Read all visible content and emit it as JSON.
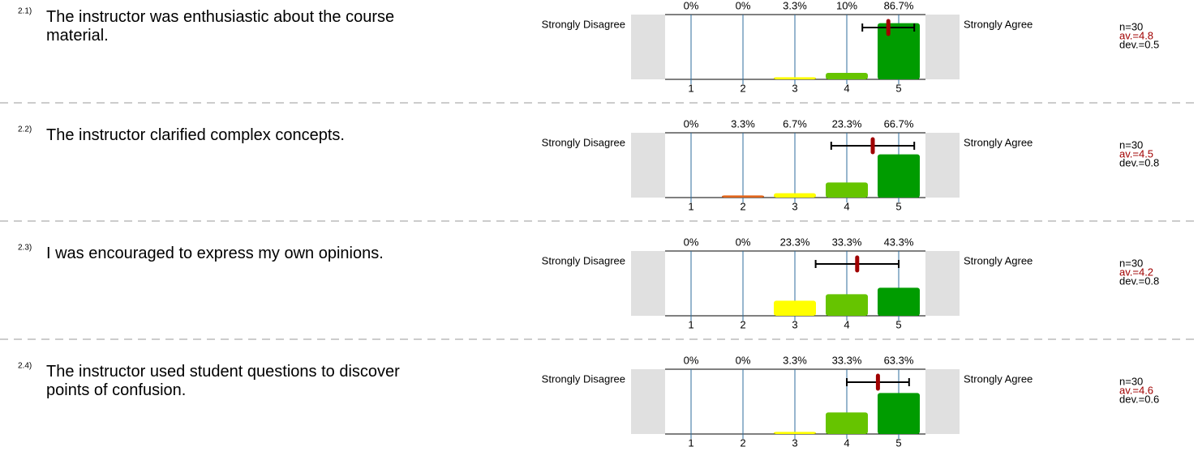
{
  "chart_data": [
    {
      "type": "bar",
      "label": "2.1)",
      "title": "The instructor was enthusiastic about the course material.",
      "left_label": "Strongly Disagree",
      "right_label": "Strongly Agree",
      "categories": [
        "1",
        "2",
        "3",
        "4",
        "5"
      ],
      "values": [
        0,
        0,
        3.3,
        10,
        86.7
      ],
      "value_labels": [
        "0%",
        "0%",
        "3.3%",
        "10%",
        "86.7%"
      ],
      "colors": [
        "#d40000",
        "#e0651c",
        "#ffff00",
        "#66c400",
        "#009c00"
      ],
      "ylim": [
        0,
        100
      ],
      "mean": 4.8,
      "sd": 0.5,
      "n_label": "n=30",
      "mean_label": "av.=4.8",
      "sd_label": "dev.=0.5"
    },
    {
      "type": "bar",
      "label": "2.2)",
      "title": "The instructor clarified complex concepts.",
      "left_label": "Strongly Disagree",
      "right_label": "Strongly Agree",
      "categories": [
        "1",
        "2",
        "3",
        "4",
        "5"
      ],
      "values": [
        0,
        3.3,
        6.7,
        23.3,
        66.7
      ],
      "value_labels": [
        "0%",
        "3.3%",
        "6.7%",
        "23.3%",
        "66.7%"
      ],
      "colors": [
        "#d40000",
        "#e0651c",
        "#ffff00",
        "#66c400",
        "#009c00"
      ],
      "ylim": [
        0,
        100
      ],
      "mean": 4.5,
      "sd": 0.8,
      "n_label": "n=30",
      "mean_label": "av.=4.5",
      "sd_label": "dev.=0.8"
    },
    {
      "type": "bar",
      "label": "2.3)",
      "title": "I was encouraged to express my own opinions.",
      "left_label": "Strongly Disagree",
      "right_label": "Strongly Agree",
      "categories": [
        "1",
        "2",
        "3",
        "4",
        "5"
      ],
      "values": [
        0,
        0,
        23.3,
        33.3,
        43.3
      ],
      "value_labels": [
        "0%",
        "0%",
        "23.3%",
        "33.3%",
        "43.3%"
      ],
      "colors": [
        "#d40000",
        "#e0651c",
        "#ffff00",
        "#66c400",
        "#009c00"
      ],
      "ylim": [
        0,
        100
      ],
      "mean": 4.2,
      "sd": 0.8,
      "n_label": "n=30",
      "mean_label": "av.=4.2",
      "sd_label": "dev.=0.8"
    },
    {
      "type": "bar",
      "label": "2.4)",
      "title": "The instructor used student questions to discover points of confusion.",
      "left_label": "Strongly Disagree",
      "right_label": "Strongly Agree",
      "categories": [
        "1",
        "2",
        "3",
        "4",
        "5"
      ],
      "values": [
        0,
        0,
        3.3,
        33.3,
        63.3
      ],
      "value_labels": [
        "0%",
        "0%",
        "3.3%",
        "33.3%",
        "63.3%"
      ],
      "colors": [
        "#d40000",
        "#e0651c",
        "#ffff00",
        "#66c400",
        "#009c00"
      ],
      "ylim": [
        0,
        100
      ],
      "mean": 4.6,
      "sd": 0.6,
      "n_label": "n=30",
      "mean_label": "av.=4.6",
      "sd_label": "dev.=0.6"
    }
  ]
}
